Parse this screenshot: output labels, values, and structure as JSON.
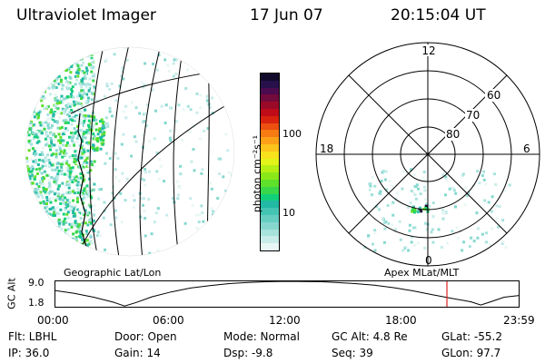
{
  "header": {
    "instrument": "Ultraviolet Imager",
    "date": "17 Jun 07",
    "time": "20:15:04 UT"
  },
  "colorbar": {
    "unit_label": "photon cm⁻²s⁻¹",
    "ticks": [
      "100",
      "10"
    ],
    "colors": [
      "#e8f7f5",
      "#c7ecea",
      "#a7e2dd",
      "#86d8cf",
      "#65cec1",
      "#44c4b3",
      "#22b9a5",
      "#12d07a",
      "#38d84a",
      "#5fe02b",
      "#8ae818",
      "#b6ef14",
      "#e2f418",
      "#f8e21c",
      "#fdc41c",
      "#fda018",
      "#f77a12",
      "#ec4f0f",
      "#d9230e",
      "#bf0c18",
      "#9a0a28",
      "#730a3c",
      "#4c0b4f",
      "#28104a",
      "#120a2a"
    ]
  },
  "left_panel": {
    "caption": "Geographic Lat/Lon"
  },
  "right_panel": {
    "caption": "Apex MLat/MLT",
    "mlt_labels": [
      "12",
      "18",
      "6",
      "0"
    ],
    "mlat_labels": [
      "60",
      "70",
      "80"
    ]
  },
  "altitude_plot": {
    "ylabel": "GC Alt",
    "y_top": "9.0",
    "y_bottom": "1.8",
    "x_ticks": [
      "00:00",
      "06:00",
      "12:00",
      "18:00",
      "23:59"
    ],
    "marker_color": "#e02020"
  },
  "chart_data": {
    "type": "line",
    "title": "",
    "xlabel": "",
    "ylabel": "GC Alt",
    "x_hours": [
      0,
      1,
      2,
      3,
      3.6,
      4.2,
      5,
      6,
      7,
      8,
      9,
      10,
      11,
      12,
      13,
      13.7,
      14.5,
      15.5,
      16.5,
      17.5,
      18.5,
      19.5,
      20.5,
      21.5,
      22,
      22.5,
      23.2,
      23.98
    ],
    "alt_re": [
      6.4,
      5.6,
      4.5,
      3.1,
      2.0,
      3.0,
      4.6,
      6.0,
      7.1,
      7.8,
      8.35,
      8.7,
      8.9,
      9.0,
      8.95,
      8.9,
      8.7,
      8.35,
      7.9,
      7.2,
      6.3,
      5.2,
      4.2,
      3.2,
      2.3,
      3.2,
      4.5,
      5.0
    ],
    "ylim": [
      1.8,
      9.0
    ],
    "xlim": [
      0,
      23.98
    ],
    "current_time_hours": 20.25
  },
  "status": {
    "flt": "Flt: LBHL",
    "ip": "IP: 36.0",
    "door": "Door: Open",
    "gain": "Gain: 14",
    "mode": "Mode: Normal",
    "dsp": "Dsp:   -9.8",
    "gcalt": "GC Alt: 4.8 Re",
    "seq": "Seq: 39",
    "glat": "GLat:  -55.2",
    "glon": "GLon:  97.7"
  }
}
